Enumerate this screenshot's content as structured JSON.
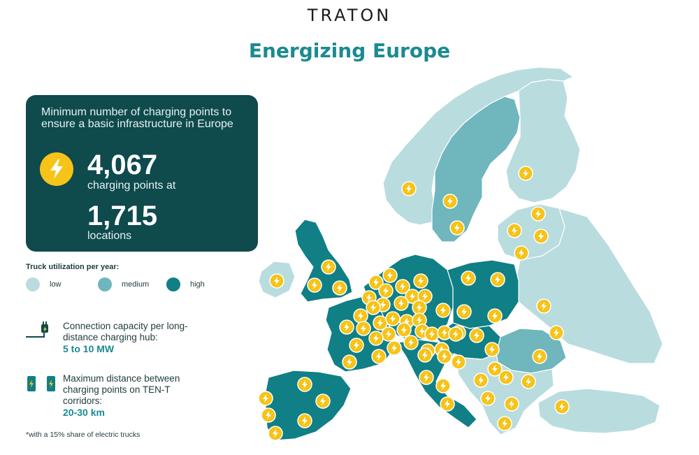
{
  "brand": "TRATON",
  "title": "Energizing Europe",
  "infobox": {
    "heading": "Minimum number of charging points to ensure a basic infrastructure in Europe",
    "charging_points": "4,067",
    "charging_points_label": "charging points at",
    "locations": "1,715",
    "locations_label": "locations"
  },
  "legend": {
    "title": "Truck utilization per year:",
    "items": [
      {
        "label": "low",
        "color": "#b9dcdf"
      },
      {
        "label": "medium",
        "color": "#6fb6bd"
      },
      {
        "label": "high",
        "color": "#107f86"
      }
    ]
  },
  "stats": [
    {
      "label": "Connection capacity per long-distance charging hub:",
      "value": "5 to 10 MW",
      "icon": "plug-icon"
    },
    {
      "label": "Maximum distance between charging points on TEN-T corridors:",
      "value": "20-30 km",
      "icon": "charging-station-icon"
    }
  ],
  "footnote": "*with a 15% share of electric trucks",
  "colors": {
    "accent": "#1b8a91",
    "box": "#0f4a4d",
    "bolt": "#f6c319",
    "low": "#b9dcdf",
    "medium": "#6fb6bd",
    "high": "#107f86"
  },
  "map": {
    "regions": [
      {
        "name": "Norway",
        "utilization": "low"
      },
      {
        "name": "Sweden",
        "utilization": "medium"
      },
      {
        "name": "Finland",
        "utilization": "low"
      },
      {
        "name": "Baltic states",
        "utilization": "low"
      },
      {
        "name": "Ireland",
        "utilization": "low"
      },
      {
        "name": "United Kingdom",
        "utilization": "high"
      },
      {
        "name": "France",
        "utilization": "high"
      },
      {
        "name": "Iberia",
        "utilization": "high"
      },
      {
        "name": "Benelux and Germany",
        "utilization": "high"
      },
      {
        "name": "Poland",
        "utilization": "high"
      },
      {
        "name": "Italy",
        "utilization": "high"
      },
      {
        "name": "Eastern Europe",
        "utilization": "low"
      },
      {
        "name": "Romania",
        "utilization": "medium"
      },
      {
        "name": "Balkans and Greece",
        "utilization": "low"
      },
      {
        "name": "Turkey",
        "utilization": "low"
      }
    ],
    "charging_location_icon": "lightning-bolt-icon"
  }
}
